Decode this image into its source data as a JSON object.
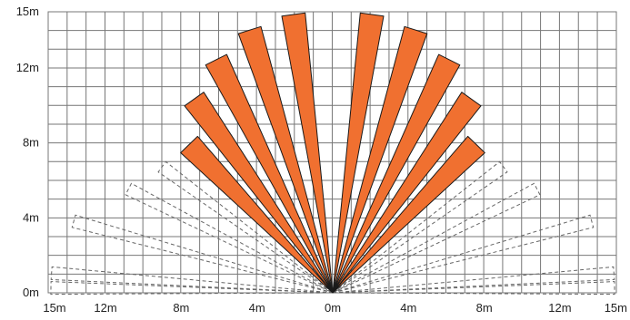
{
  "y_axis_labels": [
    "0m",
    "4m",
    "8m",
    "12m",
    "15m"
  ],
  "x_axis_labels": [
    "15m",
    "12m",
    "8m",
    "4m",
    "0m",
    "4m",
    "8m",
    "12m",
    "15m"
  ],
  "colors": {
    "active_beam": "#f07030",
    "beam_outline": "#1a1a1a",
    "inactive_beam": "#666666",
    "grid": "#777777"
  },
  "detection_pattern": {
    "active_beams": [
      {
        "angle_deg": 134,
        "range_m": 11
      },
      {
        "angle_deg": 125.5,
        "range_m": 12.7
      },
      {
        "angle_deg": 116.5,
        "range_m": 13.9
      },
      {
        "angle_deg": 107.5,
        "range_m": 14.7
      },
      {
        "angle_deg": 98,
        "range_m": 15
      },
      {
        "angle_deg": 82,
        "range_m": 15
      },
      {
        "angle_deg": 72.5,
        "range_m": 14.7
      },
      {
        "angle_deg": 63.5,
        "range_m": 13.9
      },
      {
        "angle_deg": 54.5,
        "range_m": 12.7
      },
      {
        "angle_deg": 46,
        "range_m": 11
      }
    ],
    "inactive_beams": [
      {
        "angle_deg": 143.5,
        "range_m": 11.3
      },
      {
        "angle_deg": 153,
        "range_m": 12.2
      },
      {
        "angle_deg": 164.5,
        "range_m": 14.3
      },
      {
        "angle_deg": 176,
        "range_m": 15
      },
      {
        "angle_deg": 179,
        "range_m": 15
      },
      {
        "angle_deg": 36.5,
        "range_m": 11.3
      },
      {
        "angle_deg": 27,
        "range_m": 12.2
      },
      {
        "angle_deg": 15.5,
        "range_m": 14.3
      },
      {
        "angle_deg": 4,
        "range_m": 15
      },
      {
        "angle_deg": 1,
        "range_m": 15
      }
    ]
  }
}
